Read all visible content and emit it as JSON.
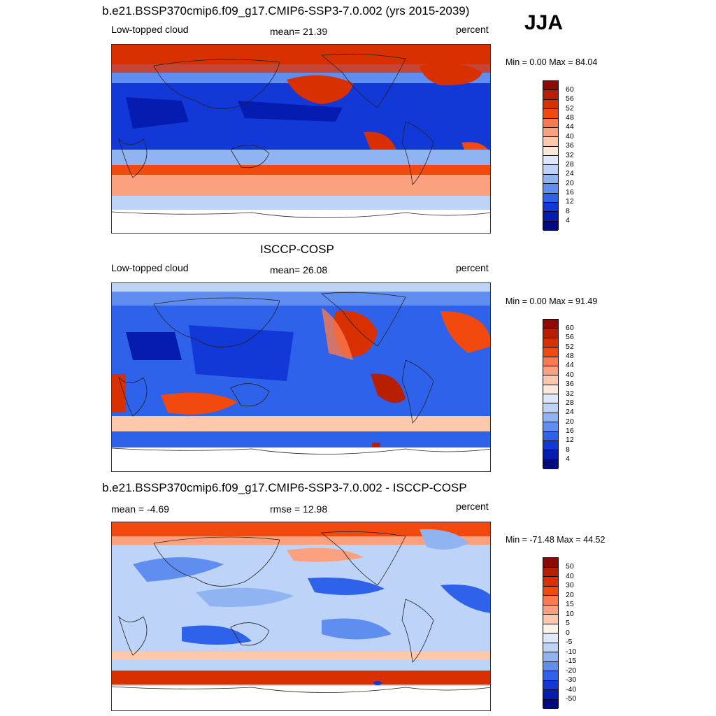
{
  "season": "JJA",
  "panels": [
    {
      "id": "model",
      "title": "b.e21.BSSP370cmip6.f09_g17.CMIP6-SSP3-7.0.002 (yrs 2015-2039)",
      "left_label": "Low-topped cloud",
      "center_label": "mean=  21.39",
      "right_label": "percent",
      "minmax": "Min =   0.00 Max =  84.04",
      "colorbar_labels": [
        "60",
        "56",
        "52",
        "48",
        "44",
        "40",
        "36",
        "32",
        "28",
        "24",
        "20",
        "16",
        "12",
        "8",
        "4"
      ],
      "colorbar_colors": [
        "#8c0a00",
        "#b81f00",
        "#d83000",
        "#f24a0e",
        "#f87a4e",
        "#fca180",
        "#fdc8ac",
        "#fde8da",
        "#dde8fb",
        "#bdd3f7",
        "#90b4f2",
        "#5f8ef0",
        "#2f62ea",
        "#1238d8",
        "#041cb0",
        "#000a80"
      ]
    },
    {
      "id": "obs",
      "title": "ISCCP-COSP",
      "left_label": "Low-topped cloud",
      "center_label": "mean=  26.08",
      "right_label": "percent",
      "minmax": "Min =   0.00 Max =  91.49",
      "colorbar_labels": [
        "60",
        "56",
        "52",
        "48",
        "44",
        "40",
        "36",
        "32",
        "28",
        "24",
        "20",
        "16",
        "12",
        "8",
        "4"
      ],
      "colorbar_colors": [
        "#8c0a00",
        "#b81f00",
        "#d83000",
        "#f24a0e",
        "#f87a4e",
        "#fca180",
        "#fdc8ac",
        "#fde8da",
        "#dde8fb",
        "#bdd3f7",
        "#90b4f2",
        "#5f8ef0",
        "#2f62ea",
        "#1238d8",
        "#041cb0",
        "#000a80"
      ]
    },
    {
      "id": "diff",
      "title": "b.e21.BSSP370cmip6.f09_g17.CMIP6-SSP3-7.0.002 - ISCCP-COSP",
      "left_label": "mean =  -4.69",
      "center_label": "rmse =  12.98",
      "right_label": "percent",
      "minmax": "Min = -71.48 Max =  44.52",
      "colorbar_labels": [
        "50",
        "40",
        "30",
        "20",
        "15",
        "10",
        "5",
        "0",
        "-5",
        "-10",
        "-15",
        "-20",
        "-30",
        "-40",
        "-50"
      ],
      "colorbar_colors": [
        "#8c0a00",
        "#b81f00",
        "#d83000",
        "#f24a0e",
        "#f87a4e",
        "#fca180",
        "#fdc8ac",
        "#fdf2ea",
        "#dde8fb",
        "#bdd3f7",
        "#90b4f2",
        "#5f8ef0",
        "#2f62ea",
        "#1238d8",
        "#041cb0",
        "#000a80"
      ]
    }
  ]
}
